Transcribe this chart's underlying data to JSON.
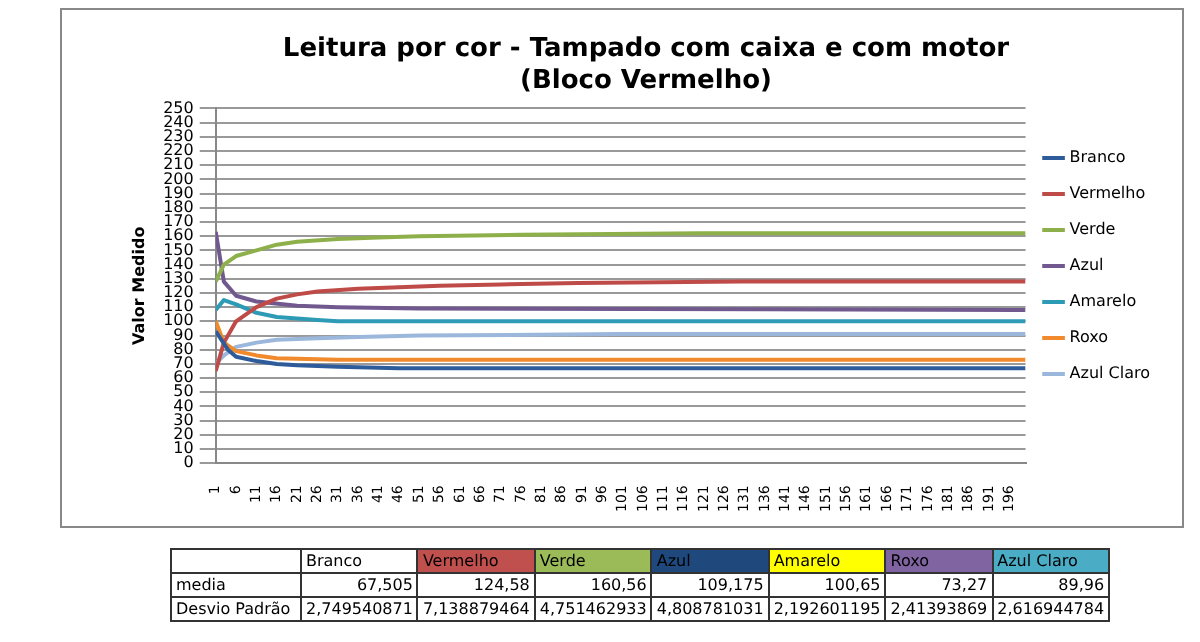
{
  "chart_data": {
    "type": "line",
    "title": "Leitura por cor - Tampado com caixa e com motor",
    "subtitle": "(Bloco Vermelho)",
    "ylabel": "Valor Medido",
    "xlim": [
      1,
      200
    ],
    "xticks": [
      1,
      6,
      11,
      16,
      21,
      26,
      31,
      36,
      41,
      46,
      51,
      56,
      61,
      66,
      71,
      76,
      81,
      86,
      91,
      96,
      101,
      106,
      111,
      116,
      121,
      126,
      131,
      136,
      141,
      146,
      151,
      156,
      161,
      166,
      171,
      176,
      181,
      186,
      191,
      196
    ],
    "ylim": [
      0,
      250
    ],
    "yticks": [
      0,
      10,
      20,
      30,
      40,
      50,
      60,
      70,
      80,
      90,
      100,
      110,
      120,
      130,
      140,
      150,
      160,
      170,
      180,
      190,
      200,
      210,
      220,
      230,
      240,
      250
    ],
    "grid": "y",
    "legend": "right",
    "marker": "none",
    "line_style": "solid",
    "series": [
      {
        "name": "Branco",
        "color": "#2e5c9a",
        "x": [
          1,
          4,
          6,
          11,
          16,
          21,
          31,
          46,
          200
        ],
        "values": [
          93,
          80,
          75,
          72,
          70,
          69,
          68,
          67,
          67
        ]
      },
      {
        "name": "Vermelho",
        "color": "#be4b48",
        "x": [
          1,
          3,
          6,
          11,
          16,
          21,
          26,
          36,
          46,
          56,
          71,
          90,
          130,
          200
        ],
        "values": [
          65,
          85,
          100,
          110,
          116,
          119,
          121,
          123,
          124,
          125,
          126,
          127,
          128,
          128
        ]
      },
      {
        "name": "Verde",
        "color": "#8db04a",
        "x": [
          1,
          3,
          6,
          11,
          16,
          21,
          31,
          41,
          51,
          76,
          120,
          200
        ],
        "values": [
          128,
          140,
          146,
          150,
          154,
          156,
          158,
          159,
          160,
          161,
          162,
          162
        ]
      },
      {
        "name": "Azul",
        "color": "#71588f",
        "x": [
          1,
          3,
          6,
          11,
          21,
          31,
          51,
          200
        ],
        "values": [
          163,
          128,
          118,
          114,
          111,
          110,
          109,
          108
        ]
      },
      {
        "name": "Amarelo",
        "color": "#2d9bb5",
        "x": [
          1,
          3,
          6,
          11,
          16,
          21,
          26,
          31,
          200
        ],
        "values": [
          108,
          115,
          112,
          106,
          103,
          102,
          101,
          100,
          100
        ]
      },
      {
        "name": "Roxo",
        "color": "#f08a2c",
        "x": [
          1,
          3,
          6,
          11,
          16,
          31,
          200
        ],
        "values": [
          100,
          85,
          79,
          76,
          74,
          73,
          73
        ]
      },
      {
        "name": "Azul Claro",
        "color": "#9bb7db",
        "x": [
          1,
          3,
          6,
          11,
          16,
          26,
          36,
          51,
          100,
          200
        ],
        "values": [
          70,
          76,
          82,
          85,
          87,
          88,
          89,
          90,
          91,
          91
        ]
      }
    ],
    "annotations": [
      "media",
      "67,505",
      "124,58",
      "160,56",
      "109,175",
      "100,65",
      "73,27",
      "89,96",
      "Desvio Padrão",
      "2,749540871",
      "7,138879464",
      "4,751462933",
      "4,808781031",
      "2,192601195",
      "2,41393869",
      "2,616944784"
    ]
  }
}
